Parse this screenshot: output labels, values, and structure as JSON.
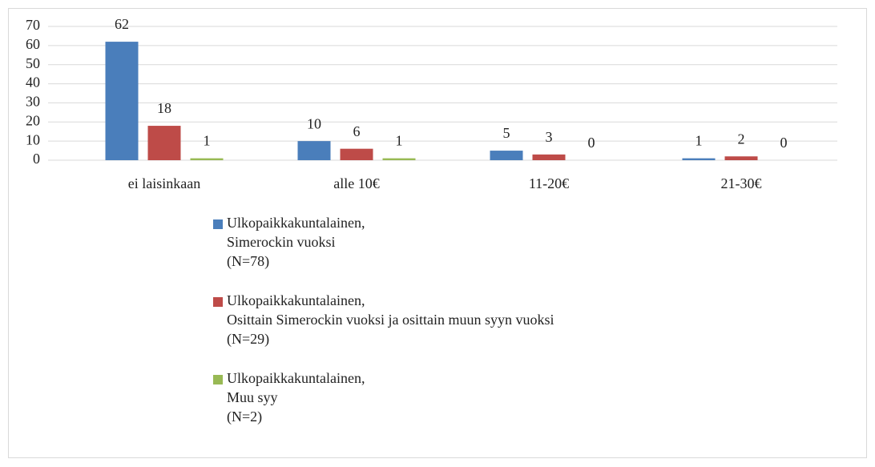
{
  "chart_data": {
    "type": "bar",
    "categories": [
      "ei laisinkaan",
      "alle 10€",
      "11-20€",
      "21-30€"
    ],
    "series": [
      {
        "name": "Ulkopaikkakuntalainen,\nSimerockin vuoksi\n(N=78)",
        "color": "#4a7ebb",
        "values": [
          62,
          10,
          5,
          1
        ]
      },
      {
        "name": "Ulkopaikkakuntalainen,\nOsittain Simerockin vuoksi ja osittain muun syyn vuoksi\n(N=29)",
        "color": "#be4b48",
        "values": [
          18,
          6,
          3,
          2
        ]
      },
      {
        "name": "Ulkopaikkakuntalainen,\nMuu syy\n(N=2)",
        "color": "#98b954",
        "values": [
          1,
          1,
          0,
          0
        ]
      }
    ],
    "ylim": [
      0,
      70
    ],
    "yticks": [
      0,
      10,
      20,
      30,
      40,
      50,
      60,
      70
    ],
    "grid": true,
    "legend": "bottom"
  }
}
